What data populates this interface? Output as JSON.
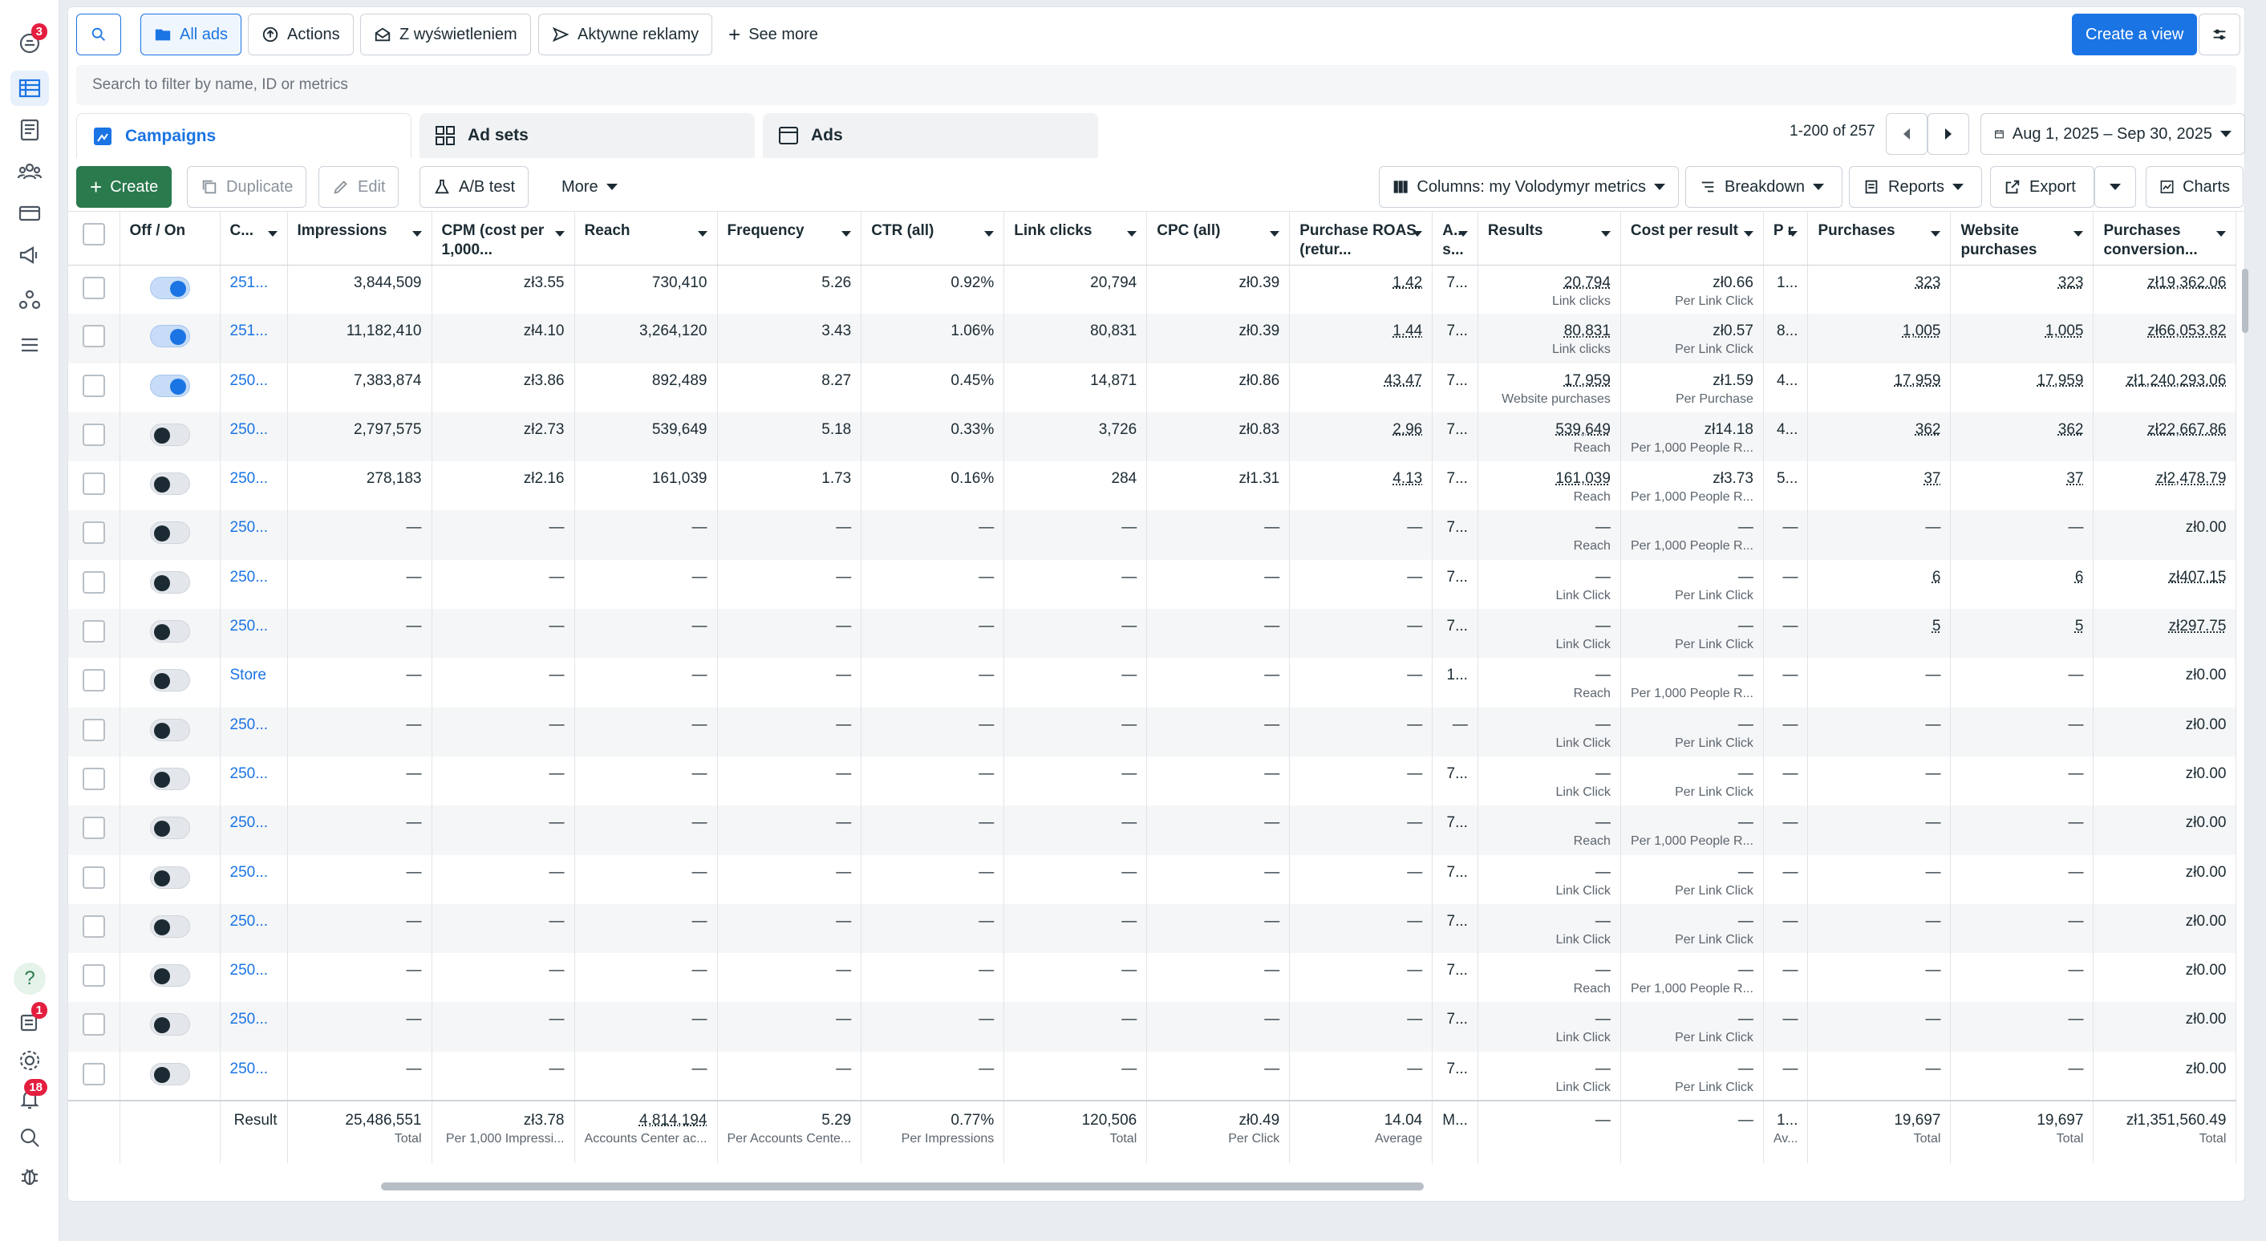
{
  "sidebar": {
    "badges": {
      "notifications": "3",
      "reports": "1",
      "alerts": "18"
    },
    "help_label": "?"
  },
  "toolbar": {
    "filters": [
      "All ads",
      "Actions",
      "Z wyświetleniem",
      "Aktywne reklamy"
    ],
    "see_more": "See more",
    "create_view": "Create a view"
  },
  "search": {
    "placeholder": "Search to filter by name, ID or metrics"
  },
  "tabs": {
    "campaigns": "Campaigns",
    "adsets": "Ad sets",
    "ads": "Ads"
  },
  "pagination": {
    "range": "1-200 of 257"
  },
  "date_range": "Aug 1, 2025 – Sep 30, 2025",
  "actions": {
    "create": "Create",
    "duplicate": "Duplicate",
    "edit": "Edit",
    "ab_test": "A/B test",
    "more": "More",
    "columns": "Columns: my Volodymyr metrics",
    "breakdown": "Breakdown",
    "reports": "Reports",
    "export": "Export",
    "charts": "Charts"
  },
  "headers": [
    "Off / On",
    "C...",
    "Impressions",
    "CPM (cost per 1,000...",
    "Reach",
    "Frequency",
    "CTR (all)",
    "Link clicks",
    "CPC (all)",
    "Purchase ROAS (retur...",
    "A... s...",
    "Results",
    "Cost per result",
    "P r",
    "Purchases",
    "Website purchases",
    "Purchases conversion..."
  ],
  "rows": [
    {
      "on": true,
      "name": "251...",
      "imp": "3,844,509",
      "cpm": "zł3.55",
      "reach": "730,410",
      "freq": "5.26",
      "ctr": "0.92%",
      "lc": "20,794",
      "cpc": "zł0.39",
      "roas": "1.42",
      "as": "7...",
      "res": "20,794",
      "res_sub": "Link clicks",
      "cpr": "zł0.66",
      "cpr_sub": "Per Link Click",
      "p": "1...",
      "pur": "323",
      "wp": "323",
      "pcv": "zł19,362.06"
    },
    {
      "on": true,
      "name": "251...",
      "imp": "11,182,410",
      "cpm": "zł4.10",
      "reach": "3,264,120",
      "freq": "3.43",
      "ctr": "1.06%",
      "lc": "80,831",
      "cpc": "zł0.39",
      "roas": "1.44",
      "as": "7...",
      "res": "80,831",
      "res_sub": "Link clicks",
      "cpr": "zł0.57",
      "cpr_sub": "Per Link Click",
      "p": "8...",
      "pur": "1,005",
      "wp": "1,005",
      "pcv": "zł66,053.82"
    },
    {
      "on": true,
      "name": "250...",
      "imp": "7,383,874",
      "cpm": "zł3.86",
      "reach": "892,489",
      "freq": "8.27",
      "ctr": "0.45%",
      "lc": "14,871",
      "cpc": "zł0.86",
      "roas": "43.47",
      "as": "7...",
      "res": "17,959",
      "res_sub": "Website purchases",
      "cpr": "zł1.59",
      "cpr_sub": "Per Purchase",
      "p": "4...",
      "pur": "17,959",
      "wp": "17,959",
      "pcv": "zł1,240,293.06"
    },
    {
      "on": false,
      "name": "250...",
      "imp": "2,797,575",
      "cpm": "zł2.73",
      "reach": "539,649",
      "freq": "5.18",
      "ctr": "0.33%",
      "lc": "3,726",
      "cpc": "zł0.83",
      "roas": "2.96",
      "as": "7...",
      "res": "539,649",
      "res_sub": "Reach",
      "cpr": "zł14.18",
      "cpr_sub": "Per 1,000 People R...",
      "p": "4...",
      "pur": "362",
      "wp": "362",
      "pcv": "zł22,667.86"
    },
    {
      "on": false,
      "name": "250...",
      "imp": "278,183",
      "cpm": "zł2.16",
      "reach": "161,039",
      "freq": "1.73",
      "ctr": "0.16%",
      "lc": "284",
      "cpc": "zł1.31",
      "roas": "4.13",
      "as": "7...",
      "res": "161,039",
      "res_sub": "Reach",
      "cpr": "zł3.73",
      "cpr_sub": "Per 1,000 People R...",
      "p": "5...",
      "pur": "37",
      "wp": "37",
      "pcv": "zł2,478.79"
    },
    {
      "on": false,
      "name": "250...",
      "imp": "—",
      "cpm": "—",
      "reach": "—",
      "freq": "—",
      "ctr": "—",
      "lc": "—",
      "cpc": "—",
      "roas": "—",
      "as": "7...",
      "res": "—",
      "res_sub": "Reach",
      "cpr": "—",
      "cpr_sub": "Per 1,000 People R...",
      "p": "—",
      "pur": "—",
      "wp": "—",
      "pcv": "zł0.00"
    },
    {
      "on": false,
      "name": "250...",
      "imp": "—",
      "cpm": "—",
      "reach": "—",
      "freq": "—",
      "ctr": "—",
      "lc": "—",
      "cpc": "—",
      "roas": "—",
      "as": "7...",
      "res": "—",
      "res_sub": "Link Click",
      "cpr": "—",
      "cpr_sub": "Per Link Click",
      "p": "—",
      "pur": "6",
      "wp": "6",
      "pcv": "zł407.15"
    },
    {
      "on": false,
      "name": "250...",
      "imp": "—",
      "cpm": "—",
      "reach": "—",
      "freq": "—",
      "ctr": "—",
      "lc": "—",
      "cpc": "—",
      "roas": "—",
      "as": "7...",
      "res": "—",
      "res_sub": "Link Click",
      "cpr": "—",
      "cpr_sub": "Per Link Click",
      "p": "—",
      "pur": "5",
      "wp": "5",
      "pcv": "zł297.75"
    },
    {
      "on": false,
      "name": "Store",
      "imp": "—",
      "cpm": "—",
      "reach": "—",
      "freq": "—",
      "ctr": "—",
      "lc": "—",
      "cpc": "—",
      "roas": "—",
      "as": "1...",
      "res": "—",
      "res_sub": "Reach",
      "cpr": "—",
      "cpr_sub": "Per 1,000 People R...",
      "p": "—",
      "pur": "—",
      "wp": "—",
      "pcv": "zł0.00"
    },
    {
      "on": false,
      "name": "250...",
      "imp": "—",
      "cpm": "—",
      "reach": "—",
      "freq": "—",
      "ctr": "—",
      "lc": "—",
      "cpc": "—",
      "roas": "—",
      "as": "—",
      "res": "—",
      "res_sub": "Link Click",
      "cpr": "—",
      "cpr_sub": "Per Link Click",
      "p": "—",
      "pur": "—",
      "wp": "—",
      "pcv": "zł0.00"
    },
    {
      "on": false,
      "name": "250...",
      "imp": "—",
      "cpm": "—",
      "reach": "—",
      "freq": "—",
      "ctr": "—",
      "lc": "—",
      "cpc": "—",
      "roas": "—",
      "as": "7...",
      "res": "—",
      "res_sub": "Link Click",
      "cpr": "—",
      "cpr_sub": "Per Link Click",
      "p": "—",
      "pur": "—",
      "wp": "—",
      "pcv": "zł0.00"
    },
    {
      "on": false,
      "name": "250...",
      "imp": "—",
      "cpm": "—",
      "reach": "—",
      "freq": "—",
      "ctr": "—",
      "lc": "—",
      "cpc": "—",
      "roas": "—",
      "as": "7...",
      "res": "—",
      "res_sub": "Reach",
      "cpr": "—",
      "cpr_sub": "Per 1,000 People R...",
      "p": "—",
      "pur": "—",
      "wp": "—",
      "pcv": "zł0.00"
    },
    {
      "on": false,
      "name": "250...",
      "imp": "—",
      "cpm": "—",
      "reach": "—",
      "freq": "—",
      "ctr": "—",
      "lc": "—",
      "cpc": "—",
      "roas": "—",
      "as": "7...",
      "res": "—",
      "res_sub": "Link Click",
      "cpr": "—",
      "cpr_sub": "Per Link Click",
      "p": "—",
      "pur": "—",
      "wp": "—",
      "pcv": "zł0.00"
    },
    {
      "on": false,
      "name": "250...",
      "imp": "—",
      "cpm": "—",
      "reach": "—",
      "freq": "—",
      "ctr": "—",
      "lc": "—",
      "cpc": "—",
      "roas": "—",
      "as": "7...",
      "res": "—",
      "res_sub": "Link Click",
      "cpr": "—",
      "cpr_sub": "Per Link Click",
      "p": "—",
      "pur": "—",
      "wp": "—",
      "pcv": "zł0.00"
    },
    {
      "on": false,
      "name": "250...",
      "imp": "—",
      "cpm": "—",
      "reach": "—",
      "freq": "—",
      "ctr": "—",
      "lc": "—",
      "cpc": "—",
      "roas": "—",
      "as": "7...",
      "res": "—",
      "res_sub": "Reach",
      "cpr": "—",
      "cpr_sub": "Per 1,000 People R...",
      "p": "—",
      "pur": "—",
      "wp": "—",
      "pcv": "zł0.00"
    },
    {
      "on": false,
      "name": "250...",
      "imp": "—",
      "cpm": "—",
      "reach": "—",
      "freq": "—",
      "ctr": "—",
      "lc": "—",
      "cpc": "—",
      "roas": "—",
      "as": "7...",
      "res": "—",
      "res_sub": "Link Click",
      "cpr": "—",
      "cpr_sub": "Per Link Click",
      "p": "—",
      "pur": "—",
      "wp": "—",
      "pcv": "zł0.00"
    },
    {
      "on": false,
      "name": "250...",
      "imp": "—",
      "cpm": "—",
      "reach": "—",
      "freq": "—",
      "ctr": "—",
      "lc": "—",
      "cpc": "—",
      "roas": "—",
      "as": "7...",
      "res": "—",
      "res_sub": "Link Click",
      "cpr": "—",
      "cpr_sub": "Per Link Click",
      "p": "—",
      "pur": "—",
      "wp": "—",
      "pcv": "zł0.00"
    }
  ],
  "summary": {
    "label": "Result",
    "imp": "25,486,551",
    "imp_sub": "Total",
    "cpm": "zł3.78",
    "cpm_sub": "Per 1,000 Impressi...",
    "reach": "4,814,194",
    "reach_sub": "Accounts Center ac...",
    "freq": "5.29",
    "freq_sub": "Per Accounts Cente...",
    "ctr": "0.77%",
    "ctr_sub": "Per Impressions",
    "lc": "120,506",
    "lc_sub": "Total",
    "cpc": "zł0.49",
    "cpc_sub": "Per Click",
    "roas": "14.04",
    "roas_sub": "Average",
    "as": "M...",
    "res": "—",
    "cpr": "—",
    "p": "1...",
    "p_sub": "Av...",
    "pur": "19,697",
    "pur_sub": "Total",
    "wp": "19,697",
    "wp_sub": "Total",
    "pcv": "zł1,351,560.49",
    "pcv_sub": "Total"
  }
}
